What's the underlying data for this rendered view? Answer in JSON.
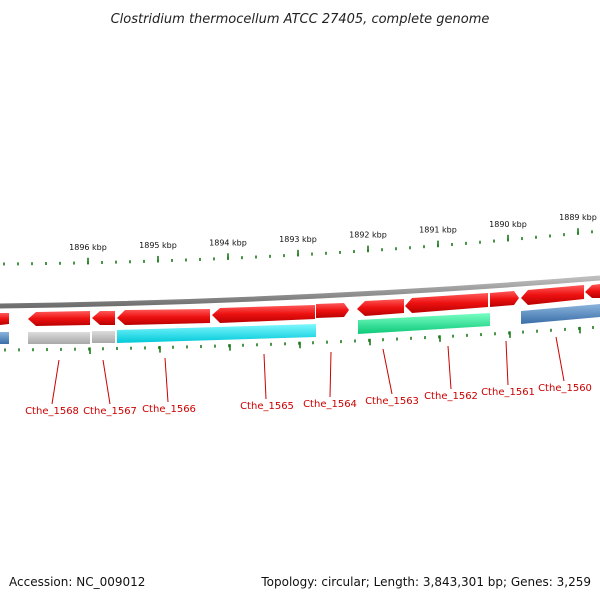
{
  "title": "Clostridium thermocellum ATCC 27405, complete genome",
  "footer": {
    "accession": "Accession: NC_009012",
    "summary": "Topology: circular; Length: 3,843,301 bp; Genes: 3,259"
  },
  "kbp_labels": [
    "1896 kbp",
    "1895 kbp",
    "1894 kbp",
    "1893 kbp",
    "1892 kbp",
    "1891 kbp",
    "1890 kbp",
    "1889 kbp"
  ],
  "gene_labels": [
    "Cthe_1568",
    "Cthe_1567",
    "Cthe_1566",
    "Cthe_1565",
    "Cthe_1564",
    "Cthe_1563",
    "Cthe_1562",
    "Cthe_1561",
    "Cthe_1560"
  ],
  "colors": {
    "backbone": "#8a8a8a",
    "cds": "#ee1111",
    "ticks": "#1a7a1a",
    "label": "#cc0000",
    "gray_feature": "#b8b8b8",
    "cyan_feature": "#00e0e8",
    "green_feature": "#10e890",
    "blue_feature": "#4a80b8"
  }
}
